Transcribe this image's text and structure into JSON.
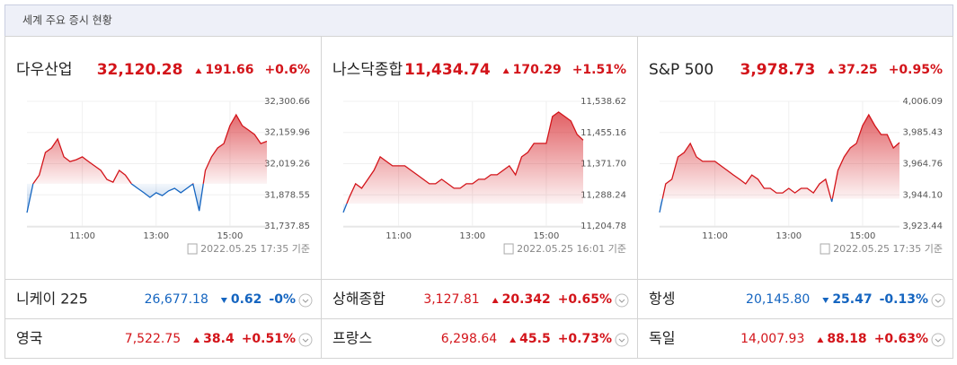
{
  "header": {
    "title": "세계 주요 증시 현황"
  },
  "colors": {
    "up": "#d3141a",
    "down": "#1565c0"
  },
  "chart_data": [
    {
      "type": "line",
      "name": "다우산업",
      "value": "32,120.28",
      "direction": "up",
      "change": "191.66",
      "percent": "+0.6%",
      "timestamp": "2022.05.25 17:35 기준",
      "x": [
        "09:30",
        "09:40",
        "09:50",
        "10:00",
        "10:10",
        "10:20",
        "10:30",
        "10:40",
        "10:50",
        "11:00",
        "11:10",
        "11:20",
        "11:30",
        "11:40",
        "11:50",
        "12:00",
        "12:10",
        "12:20",
        "12:30",
        "12:40",
        "12:50",
        "13:00",
        "13:10",
        "13:20",
        "13:30",
        "13:40",
        "13:50",
        "14:00",
        "14:10",
        "14:20",
        "14:30",
        "14:40",
        "14:50",
        "15:00",
        "15:10",
        "15:20",
        "15:30",
        "15:40",
        "15:50",
        "16:00"
      ],
      "values": [
        31798,
        31928,
        31968,
        32070,
        32090,
        32131,
        32050,
        32029,
        32037,
        32050,
        32029,
        32009,
        31989,
        31948,
        31936,
        31989,
        31968,
        31928,
        31908,
        31888,
        31867,
        31888,
        31875,
        31896,
        31908,
        31888,
        31908,
        31928,
        31806,
        31989,
        32050,
        32090,
        32110,
        32191,
        32240,
        32191,
        32171,
        32151,
        32110,
        32120.28
      ],
      "xlim": [
        "09:30",
        "16:00"
      ],
      "xticks": [
        "11:00",
        "13:00",
        "15:00"
      ],
      "ylim": [
        31737.85,
        32300.66
      ],
      "yticks": [
        {
          "value": 31737.85,
          "label": "31,737.85"
        },
        {
          "value": 31878.55,
          "label": "31,878.55"
        },
        {
          "value": 32019.26,
          "label": "32,019.26"
        },
        {
          "value": 32159.96,
          "label": "32,159.96"
        },
        {
          "value": 32300.66,
          "label": "32,300.66"
        }
      ]
    },
    {
      "type": "line",
      "name": "나스닥종합",
      "value": "11,434.74",
      "direction": "up",
      "change": "170.29",
      "percent": "+1.51%",
      "timestamp": "2022.05.25 16:01 기준",
      "x": [
        "09:30",
        "09:40",
        "09:50",
        "10:00",
        "10:10",
        "10:20",
        "10:30",
        "10:40",
        "10:50",
        "11:00",
        "11:10",
        "11:20",
        "11:30",
        "11:40",
        "11:50",
        "12:00",
        "12:10",
        "12:20",
        "12:30",
        "12:40",
        "12:50",
        "13:00",
        "13:10",
        "13:20",
        "13:30",
        "13:40",
        "13:50",
        "14:00",
        "14:10",
        "14:20",
        "14:30",
        "14:40",
        "14:50",
        "15:00",
        "15:10",
        "15:20",
        "15:30",
        "15:40",
        "15:50",
        "16:00"
      ],
      "values": [
        11241,
        11282,
        11318,
        11306,
        11330,
        11354,
        11390,
        11378,
        11366,
        11366,
        11366,
        11354,
        11342,
        11330,
        11318,
        11318,
        11330,
        11318,
        11306,
        11306,
        11318,
        11318,
        11330,
        11330,
        11342,
        11342,
        11354,
        11366,
        11342,
        11390,
        11402,
        11426,
        11426,
        11426,
        11498,
        11510,
        11498,
        11486,
        11450,
        11434.74
      ],
      "xlim": [
        "09:30",
        "16:00"
      ],
      "xticks": [
        "11:00",
        "13:00",
        "15:00"
      ],
      "ylim": [
        11204.78,
        11538.62
      ],
      "yticks": [
        {
          "value": 11204.78,
          "label": "11,204.78"
        },
        {
          "value": 11288.24,
          "label": "11,288.24"
        },
        {
          "value": 11371.7,
          "label": "11,371.70"
        },
        {
          "value": 11455.16,
          "label": "11,455.16"
        },
        {
          "value": 11538.62,
          "label": "11,538.62"
        }
      ]
    },
    {
      "type": "line",
      "name": "S&P 500",
      "value": "3,978.73",
      "direction": "up",
      "change": "37.25",
      "percent": "+0.95%",
      "timestamp": "2022.05.25 17:35 기준",
      "x": [
        "09:30",
        "09:40",
        "09:50",
        "10:00",
        "10:10",
        "10:20",
        "10:30",
        "10:40",
        "10:50",
        "11:00",
        "11:10",
        "11:20",
        "11:30",
        "11:40",
        "11:50",
        "12:00",
        "12:10",
        "12:20",
        "12:30",
        "12:40",
        "12:50",
        "13:00",
        "13:10",
        "13:20",
        "13:30",
        "13:40",
        "13:50",
        "14:00",
        "14:10",
        "14:20",
        "14:30",
        "14:40",
        "14:50",
        "15:00",
        "15:10",
        "15:20",
        "15:30",
        "15:40",
        "15:50",
        "16:00"
      ],
      "values": [
        3932.4,
        3951.4,
        3954.4,
        3969.2,
        3972.2,
        3978.2,
        3969.2,
        3966.3,
        3966.3,
        3966.3,
        3963.3,
        3960.3,
        3957.3,
        3954.4,
        3951.4,
        3957.3,
        3954.4,
        3948.4,
        3948.4,
        3945.4,
        3945.4,
        3948.4,
        3945.4,
        3948.4,
        3948.4,
        3945.4,
        3951.4,
        3954.4,
        3939.5,
        3960.3,
        3969.2,
        3975.2,
        3978.2,
        3990.0,
        3997.2,
        3990.0,
        3984.1,
        3984.1,
        3975.2,
        3978.73
      ],
      "xlim": [
        "09:30",
        "16:00"
      ],
      "xticks": [
        "11:00",
        "13:00",
        "15:00"
      ],
      "ylim": [
        3923.44,
        4006.09
      ],
      "yticks": [
        {
          "value": 3923.44,
          "label": "3,923.44"
        },
        {
          "value": 3944.1,
          "label": "3,944.10"
        },
        {
          "value": 3964.76,
          "label": "3,964.76"
        },
        {
          "value": 3985.43,
          "label": "3,985.43"
        },
        {
          "value": 4006.09,
          "label": "4,006.09"
        }
      ]
    }
  ],
  "indices": [
    {
      "name": "니케이 225",
      "value": "26,677.18",
      "direction": "down",
      "change": "0.62",
      "percent": "-0%"
    },
    {
      "name": "상해종합",
      "value": "3,127.81",
      "direction": "up",
      "change": "20.342",
      "percent": "+0.65%"
    },
    {
      "name": "항셍",
      "value": "20,145.80",
      "direction": "down",
      "change": "25.47",
      "percent": "-0.13%"
    },
    {
      "name": "영국",
      "value": "7,522.75",
      "direction": "up",
      "change": "38.4",
      "percent": "+0.51%"
    },
    {
      "name": "프랑스",
      "value": "6,298.64",
      "direction": "up",
      "change": "45.5",
      "percent": "+0.73%"
    },
    {
      "name": "독일",
      "value": "14,007.93",
      "direction": "up",
      "change": "88.18",
      "percent": "+0.63%"
    }
  ]
}
